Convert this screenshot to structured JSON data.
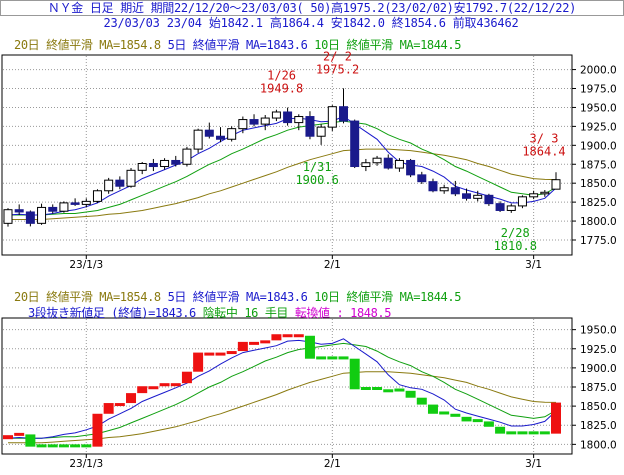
{
  "header": {
    "line1": "ＮＹ金 日足 期近 期間22/12/20～23/03/03( 50)高1975.2(23/02/02)安1792.7(22/12/22)",
    "line2": "23/03/03 23/04 始1842.1 高1864.4 安1842.0 終1854.6 前取436462"
  },
  "legend_top": {
    "ma20": "20日 終値平滑 MA=1854.8",
    "ma5": "5日 終値平滑 MA=1843.6",
    "ma10": "10日 終値平滑 MA=1844.5"
  },
  "legend_bottom": {
    "ma20": "20日 終値平滑 MA=1854.8",
    "ma5": "5日 終値平滑 MA=1843.6",
    "ma10": "10日 終値平滑 MA=1844.5",
    "breakout_label": "3段抜き新値足 (終値)=1843.6",
    "state_label": "陰転中",
    "count_label": "16 手目",
    "reversal_label": "転換値 : 1848.5"
  },
  "colors": {
    "up_candle": "#ffffff",
    "down_candle": "#1a1a8c",
    "ma5": "#1a1acc",
    "ma10": "#10a010",
    "ma20": "#8a7a10",
    "rising_block": "#ee1111",
    "falling_block": "#11cc11",
    "annotation_high": "#cc1111",
    "annotation_low": "#10a010"
  },
  "chart_data": [
    {
      "type": "candlestick",
      "x_ticks": [
        "23/1/3",
        "2/1",
        "3/1"
      ],
      "y_ticks": [
        "1775.0",
        "1800.0",
        "1825.0",
        "1850.0",
        "1875.0",
        "1900.0",
        "1925.0",
        "1950.0",
        "1975.0",
        "2000.0"
      ],
      "ylim": [
        1775,
        2010
      ],
      "candles": [
        [
          1797,
          1817,
          1792.7,
          1815
        ],
        [
          1815,
          1822,
          1808,
          1812
        ],
        [
          1812,
          1814,
          1793,
          1797
        ],
        [
          1797,
          1823,
          1795,
          1818
        ],
        [
          1818,
          1822,
          1810,
          1813
        ],
        [
          1813,
          1826,
          1811,
          1824
        ],
        [
          1824,
          1830,
          1820,
          1822
        ],
        [
          1822,
          1830,
          1818,
          1826
        ],
        [
          1826,
          1842,
          1824,
          1840
        ],
        [
          1840,
          1857,
          1836,
          1854
        ],
        [
          1854,
          1859,
          1842,
          1846
        ],
        [
          1846,
          1870,
          1844,
          1867
        ],
        [
          1867,
          1878,
          1862,
          1876
        ],
        [
          1876,
          1882,
          1866,
          1872
        ],
        [
          1872,
          1883,
          1868,
          1880
        ],
        [
          1880,
          1886,
          1872,
          1875
        ],
        [
          1875,
          1898,
          1872,
          1895
        ],
        [
          1895,
          1922,
          1890,
          1920
        ],
        [
          1920,
          1930,
          1909,
          1912
        ],
        [
          1912,
          1924,
          1904,
          1908
        ],
        [
          1908,
          1925,
          1905,
          1922
        ],
        [
          1922,
          1938,
          1916,
          1934
        ],
        [
          1934,
          1941,
          1925,
          1928
        ],
        [
          1928,
          1940,
          1920,
          1936
        ],
        [
          1936,
          1947,
          1932,
          1944
        ],
        [
          1944,
          1949.8,
          1926,
          1930
        ],
        [
          1930,
          1941,
          1920,
          1938
        ],
        [
          1938,
          1945,
          1908,
          1912
        ],
        [
          1912,
          1928,
          1900.6,
          1924
        ],
        [
          1924,
          1953,
          1919,
          1951
        ],
        [
          1951,
          1975.2,
          1929,
          1932
        ],
        [
          1932,
          1934,
          1870,
          1872
        ],
        [
          1872,
          1882,
          1866,
          1877
        ],
        [
          1877,
          1886,
          1873,
          1883
        ],
        [
          1883,
          1888,
          1868,
          1870
        ],
        [
          1870,
          1883,
          1865,
          1880
        ],
        [
          1880,
          1882,
          1858,
          1861
        ],
        [
          1861,
          1865,
          1849,
          1852
        ],
        [
          1852,
          1856,
          1838,
          1840
        ],
        [
          1840,
          1848,
          1836,
          1844
        ],
        [
          1844,
          1853,
          1833,
          1836
        ],
        [
          1836,
          1843,
          1827,
          1830
        ],
        [
          1830,
          1840,
          1826,
          1834
        ],
        [
          1834,
          1836,
          1820,
          1823
        ],
        [
          1823,
          1826,
          1812,
          1814
        ],
        [
          1814,
          1823,
          1810.8,
          1820
        ],
        [
          1820,
          1834,
          1817,
          1832
        ],
        [
          1832,
          1840,
          1829,
          1836
        ],
        [
          1836,
          1841,
          1832,
          1838
        ],
        [
          1842.1,
          1864.4,
          1842.0,
          1854.6
        ]
      ],
      "ma5": [
        1808,
        1809,
        1808,
        1808,
        1810,
        1813,
        1815,
        1819,
        1824,
        1833,
        1840,
        1847,
        1856,
        1862,
        1868,
        1874,
        1880,
        1889,
        1896,
        1905,
        1913,
        1920,
        1923,
        1926,
        1929,
        1935,
        1936,
        1934,
        1931,
        1932,
        1938,
        1928,
        1918,
        1908,
        1891,
        1878,
        1874,
        1872,
        1866,
        1858,
        1846,
        1841,
        1837,
        1833,
        1829,
        1824,
        1824,
        1826,
        1830,
        1843.6
      ],
      "ma10": [
        1808,
        1808,
        1808,
        1808,
        1809,
        1810,
        1810,
        1812,
        1814,
        1818,
        1822,
        1828,
        1834,
        1840,
        1846,
        1852,
        1859,
        1867,
        1875,
        1881,
        1889,
        1895,
        1902,
        1909,
        1914,
        1920,
        1924,
        1926,
        1928,
        1930,
        1932,
        1930,
        1928,
        1922,
        1914,
        1908,
        1903,
        1895,
        1889,
        1881,
        1872,
        1866,
        1859,
        1852,
        1845,
        1838,
        1836,
        1834,
        1836,
        1844.5
      ],
      "ma20": [
        1802,
        1802,
        1802,
        1802,
        1803,
        1804,
        1805,
        1806,
        1807,
        1809,
        1810,
        1812,
        1814,
        1817,
        1820,
        1823,
        1827,
        1831,
        1836,
        1840,
        1845,
        1850,
        1855,
        1860,
        1865,
        1871,
        1876,
        1881,
        1885,
        1889,
        1893,
        1894,
        1895,
        1895,
        1895,
        1894,
        1893,
        1891,
        1889,
        1887,
        1884,
        1881,
        1876,
        1872,
        1867,
        1862,
        1859,
        1856,
        1855,
        1854.8
      ],
      "annotations": [
        {
          "date": "1/26",
          "value": "1949.8"
        },
        {
          "date": "2/ 2",
          "value": "1975.2"
        },
        {
          "date": "1/31",
          "value": "1900.6"
        },
        {
          "date": "2/28",
          "value": "1810.8"
        },
        {
          "date": "3/ 3",
          "value": "1864.4"
        }
      ]
    },
    {
      "type": "three-line-break",
      "x_ticks": [
        "23/1/3",
        "2/1",
        "3/1"
      ],
      "y_ticks": [
        "1800.0",
        "1825.0",
        "1850.0",
        "1875.0",
        "1900.0",
        "1925.0",
        "1950.0"
      ],
      "ylim": [
        1790,
        1960
      ],
      "line_value": 1843.6,
      "reversal_value": 1848.5
    }
  ]
}
